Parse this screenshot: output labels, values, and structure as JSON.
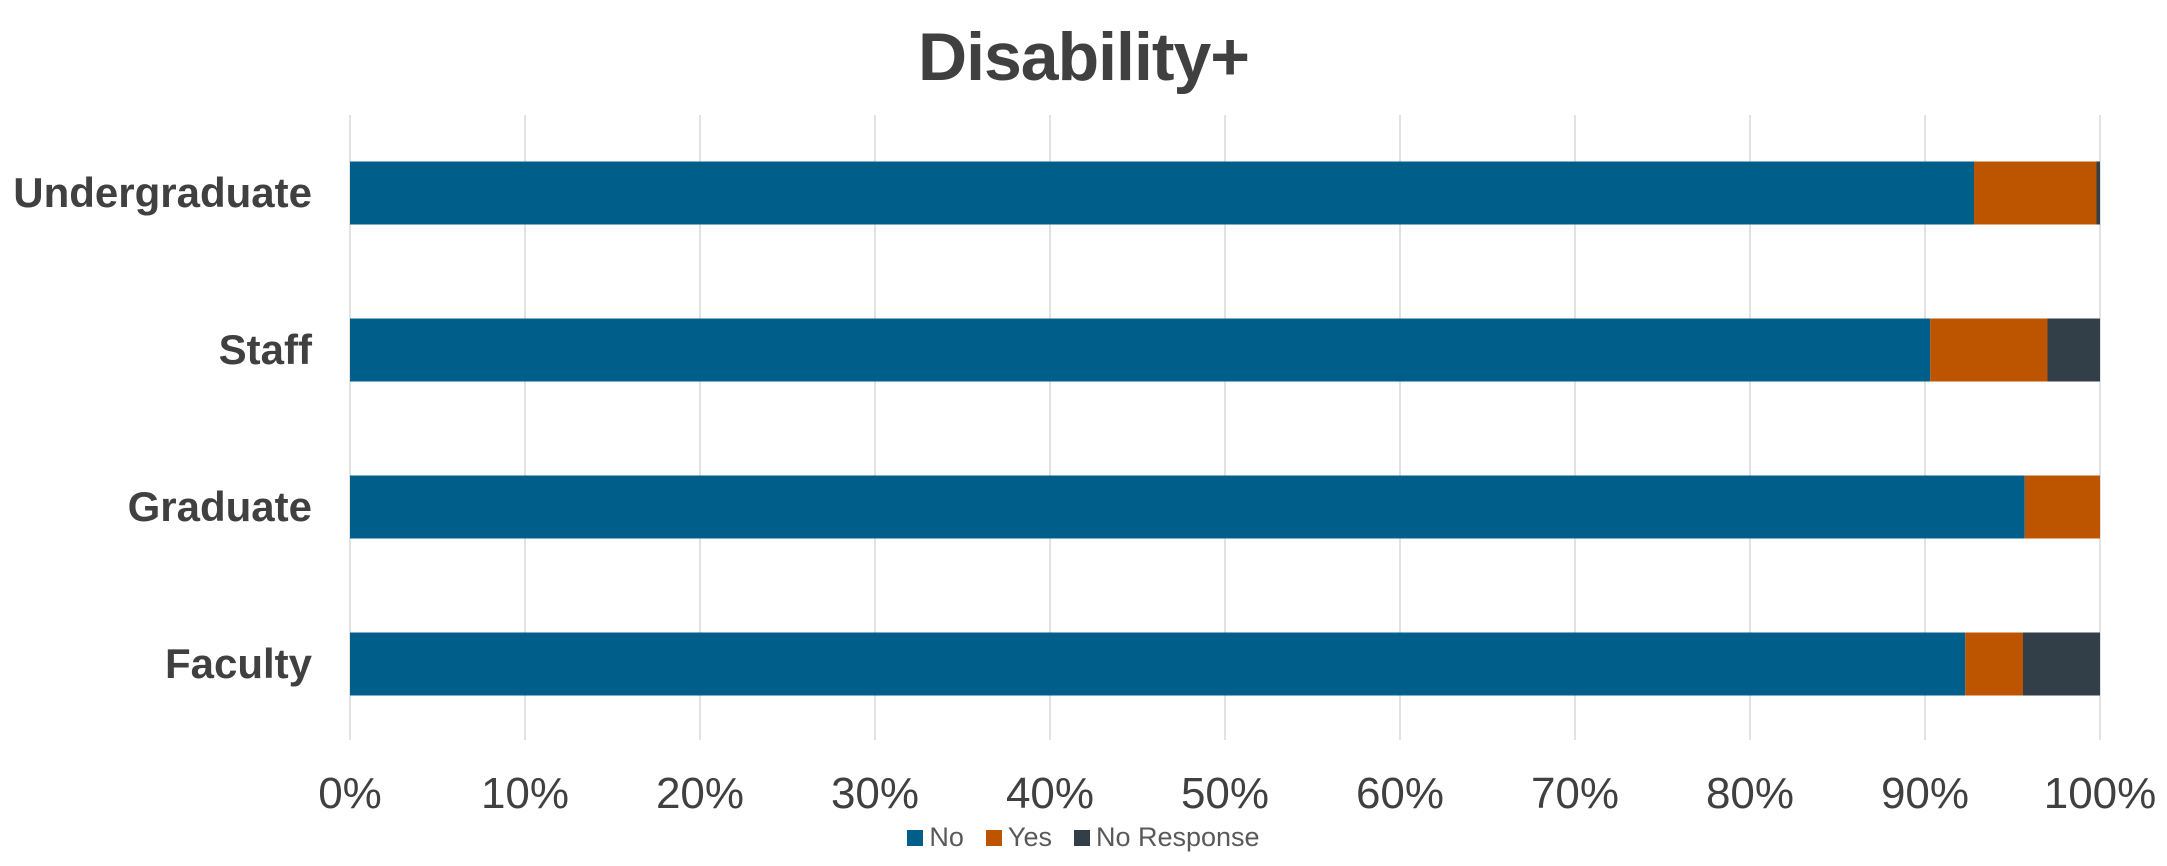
{
  "chart_data": {
    "type": "bar",
    "orientation": "horizontal",
    "stacked": "percent",
    "title": "Disability+",
    "categories": [
      "Undergraduate",
      "Staff",
      "Graduate",
      "Faculty"
    ],
    "series": [
      {
        "name": "No",
        "color": "#005f8a",
        "values": [
          92.8,
          90.3,
          95.7,
          92.3
        ]
      },
      {
        "name": "Yes",
        "color": "#bd5500",
        "values": [
          7.0,
          6.7,
          4.3,
          3.3
        ]
      },
      {
        "name": "No Response",
        "color": "#333f48",
        "values": [
          0.2,
          3.0,
          0.0,
          4.4
        ]
      }
    ],
    "xlim": [
      0,
      100
    ],
    "x_ticks": [
      "0%",
      "10%",
      "20%",
      "30%",
      "40%",
      "50%",
      "60%",
      "70%",
      "80%",
      "90%",
      "100%"
    ],
    "grid": true,
    "legend_position": "bottom"
  }
}
